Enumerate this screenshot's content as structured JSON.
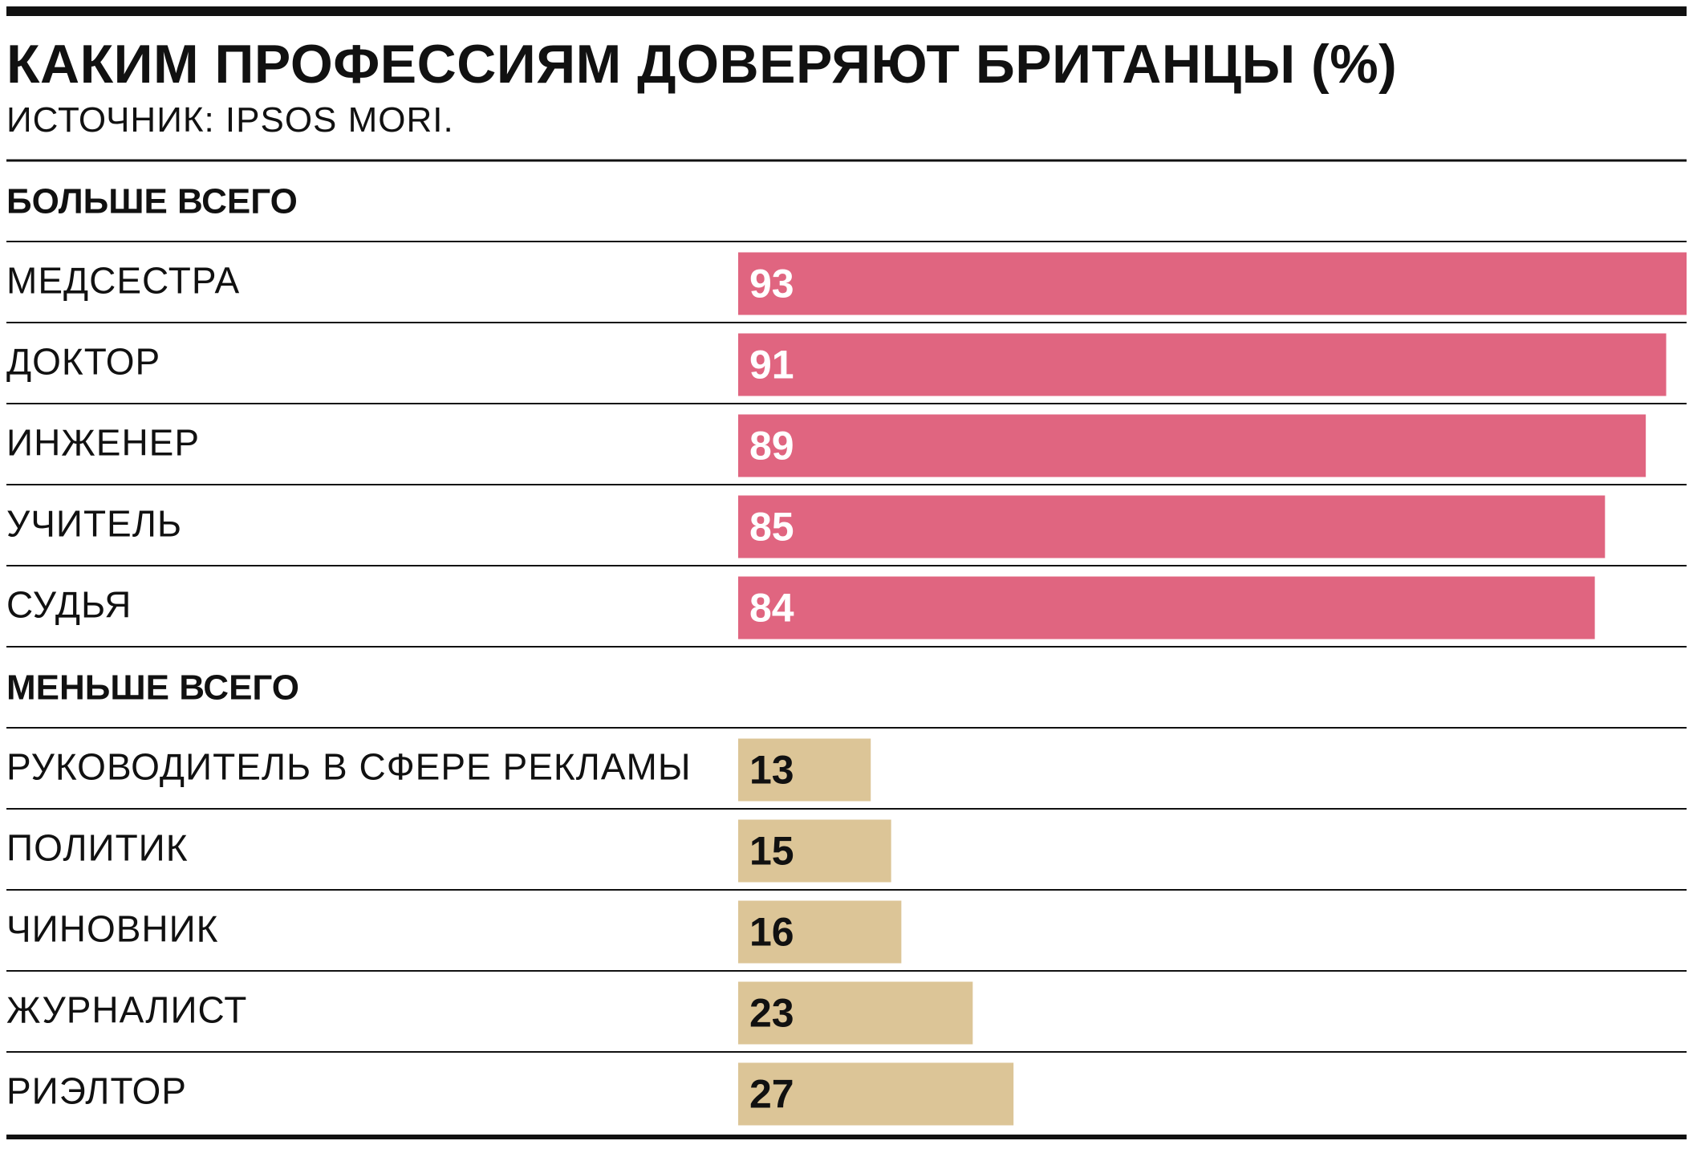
{
  "chart_data": {
    "type": "bar",
    "title": "КАКИМ ПРОФЕССИЯМ ДОВЕРЯЮТ БРИТАНЦЫ (%)",
    "subtitle": "ИСТОЧНИК: IPSOS MORI.",
    "xlim": [
      0,
      93
    ],
    "groups": [
      {
        "name": "БОЛЬШЕ ВСЕГО",
        "color": "#e06580",
        "label_color": "#ffffff",
        "categories": [
          "МЕДСЕСТРА",
          "ДОКТОР",
          "ИНЖЕНЕР",
          "УЧИТЕЛЬ",
          "СУДЬЯ"
        ],
        "values": [
          93,
          91,
          89,
          85,
          84
        ]
      },
      {
        "name": "МЕНЬШЕ ВСЕГО",
        "color": "#dcc597",
        "label_color": "#111111",
        "categories": [
          "РУКОВОДИТЕЛЬ В СФЕРЕ РЕКЛАМЫ",
          "ПОЛИТИК",
          "ЧИНОВНИК",
          "ЖУРНАЛИСТ",
          "РИЭЛТОР"
        ],
        "values": [
          13,
          15,
          16,
          23,
          27
        ]
      }
    ]
  }
}
